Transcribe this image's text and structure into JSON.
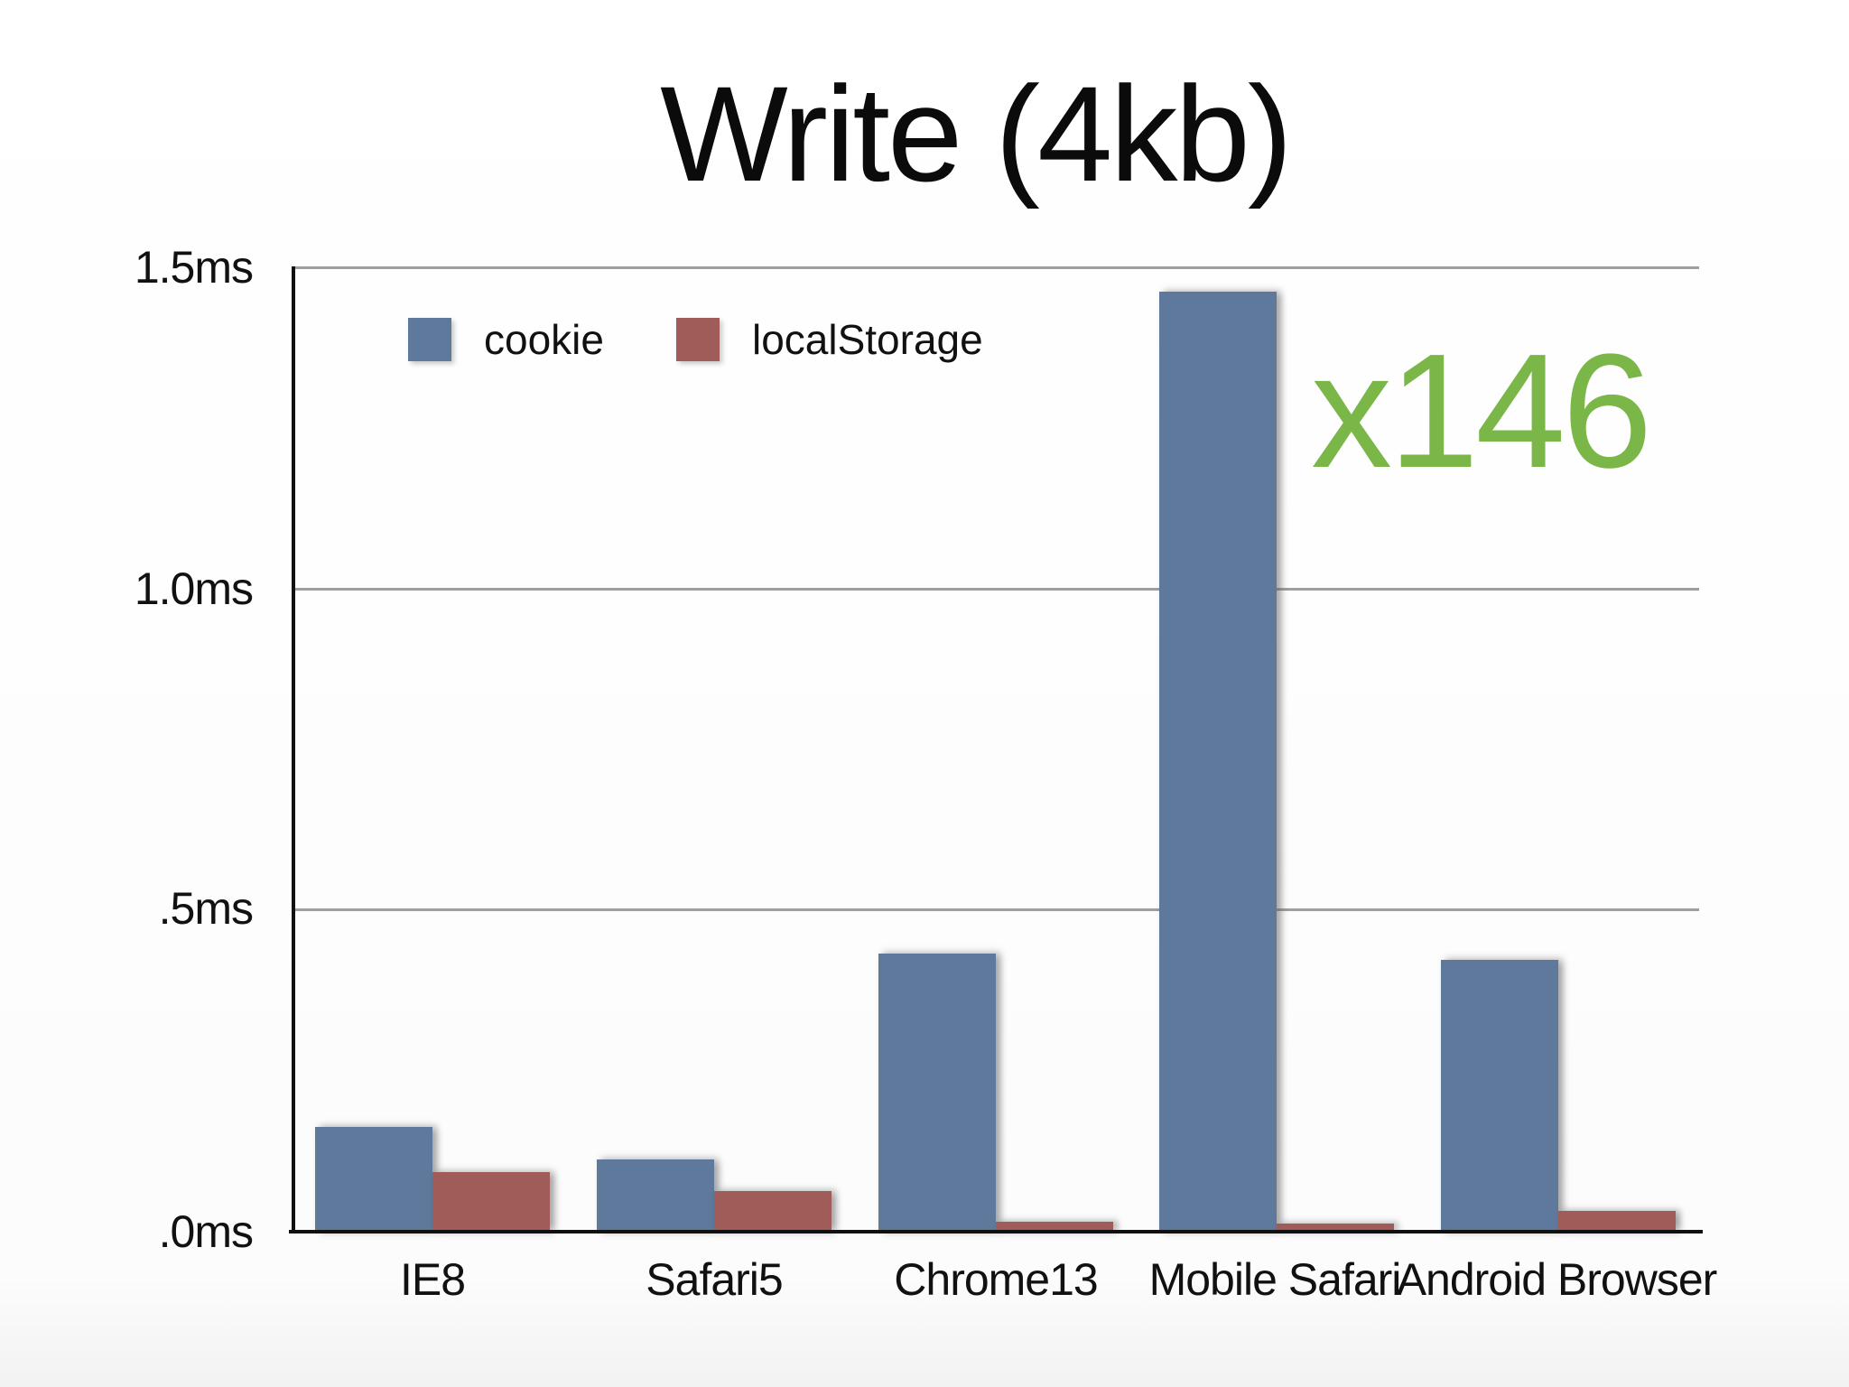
{
  "title": "Write (4kb)",
  "annotation": {
    "text": "x146",
    "color": "#7ab648"
  },
  "chart_data": {
    "type": "bar",
    "title": "Write (4kb)",
    "categories": [
      "IE8",
      "Safari5",
      "Chrome13",
      "Mobile Safari",
      "Android Browser"
    ],
    "series": [
      {
        "name": "cookie",
        "color": "#5e799b",
        "values": [
          0.16,
          0.11,
          0.43,
          1.46,
          0.42
        ]
      },
      {
        "name": "localStorage",
        "color": "#a05c58",
        "values": [
          0.09,
          0.06,
          0.013,
          0.01,
          0.03
        ]
      }
    ],
    "unit": "ms",
    "ylim": [
      0,
      1.5
    ],
    "yticks": [
      {
        "value": 1.5,
        "label": "1.5ms"
      },
      {
        "value": 1.0,
        "label": "1.0ms"
      },
      {
        "value": 0.5,
        "label": ".5ms"
      },
      {
        "value": 0.0,
        "label": ".0ms"
      }
    ],
    "grid": "horizontal",
    "legend_position": "top-left",
    "annotation": "x146"
  }
}
